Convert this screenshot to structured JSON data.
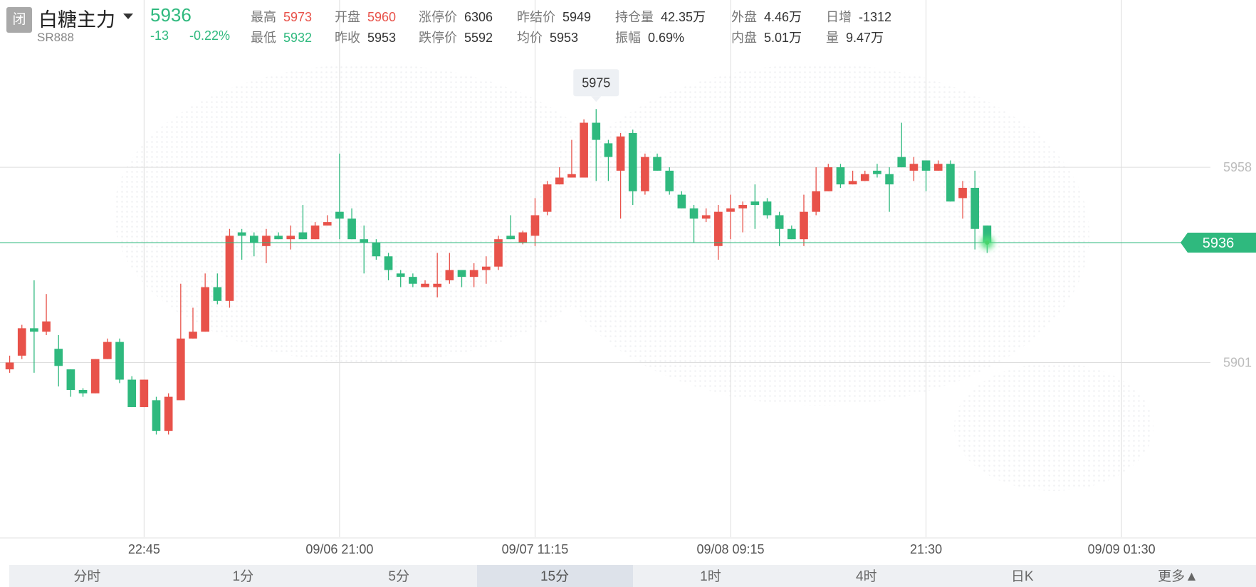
{
  "header": {
    "badge": "闭",
    "name": "白糖主力",
    "code": "SR888",
    "price": "5936",
    "change": "-13",
    "change_pct": "-0.22%",
    "price_color": "#2fb97e",
    "stats": [
      [
        {
          "label": "最高",
          "value": "5973",
          "color": "#e8524a"
        },
        {
          "label": "开盘",
          "value": "5960",
          "color": "#e8524a"
        },
        {
          "label": "涨停价",
          "value": "6306"
        },
        {
          "label": "昨结价",
          "value": "5949"
        },
        {
          "label": "持仓量",
          "value": "42.35万"
        },
        {
          "label": "外盘",
          "value": "4.46万"
        },
        {
          "label": "日增",
          "value": "-1312"
        }
      ],
      [
        {
          "label": "最低",
          "value": "5932",
          "color": "#2fb97e"
        },
        {
          "label": "昨收",
          "value": "5953"
        },
        {
          "label": "跌停价",
          "value": "5592"
        },
        {
          "label": "均价",
          "value": "5953"
        },
        {
          "label": "振幅",
          "value": "0.69%"
        },
        {
          "label": "内盘",
          "value": "5.01万"
        },
        {
          "label": "量",
          "value": "9.47万"
        }
      ]
    ]
  },
  "chart_data": {
    "type": "candlestick",
    "up_color": "#e8524a",
    "down_color": "#2fb97e",
    "grid": true,
    "ylim": [
      5850,
      5993
    ],
    "yticks": [
      5901,
      5958
    ],
    "categories": [
      null,
      null,
      null,
      null,
      null,
      null,
      null,
      null,
      null,
      null,
      null,
      "22:45",
      null,
      null,
      null,
      null,
      null,
      null,
      null,
      null,
      null,
      null,
      null,
      null,
      null,
      null,
      null,
      "09/06 21:00",
      null,
      null,
      null,
      null,
      null,
      null,
      null,
      null,
      null,
      null,
      null,
      null,
      null,
      null,
      null,
      "09/07 11:15",
      null,
      null,
      null,
      null,
      null,
      null,
      null,
      null,
      null,
      null,
      null,
      null,
      null,
      null,
      null,
      "09/08 09:15",
      null,
      null,
      null,
      null,
      null,
      null,
      null,
      null,
      null,
      null,
      null,
      null,
      null,
      null,
      null,
      "21:30",
      null,
      null,
      null,
      null,
      null,
      null,
      null,
      null,
      null,
      null,
      null,
      null,
      null,
      null,
      null,
      "09/09 01:30",
      null,
      null,
      null,
      null,
      null,
      null,
      null,
      null,
      null,
      null
    ],
    "open": [
      5899,
      5903,
      5911,
      5910,
      5905,
      5899,
      5893,
      5892,
      5902,
      5907,
      5896,
      5888,
      5890,
      5881,
      5890,
      5908,
      5910,
      5923,
      5919,
      5939,
      5938,
      5935,
      5938,
      5937,
      5939,
      5937,
      5941,
      5945,
      5943,
      5937,
      5936,
      5932,
      5927,
      5926,
      5923,
      5923,
      5925,
      5928,
      5926,
      5928,
      5929,
      5938,
      5936,
      5938,
      5945,
      5953,
      5955,
      5955,
      5971,
      5965,
      5957,
      5968,
      5951,
      5961,
      5957,
      5950,
      5946,
      5943,
      5935,
      5945,
      5946,
      5948,
      5948,
      5944,
      5940,
      5937,
      5945,
      5951,
      5958,
      5953,
      5954,
      5957,
      5956,
      5961,
      5957,
      5960,
      5957,
      5959,
      5949,
      5952,
      5941,
      null,
      null,
      null,
      null,
      null,
      null,
      null,
      null,
      null,
      null,
      null,
      null,
      null,
      null,
      null,
      null,
      null,
      null,
      null,
      null,
      null
    ],
    "high": [
      5903,
      5912,
      5925,
      5921,
      5909,
      5899,
      5893.5,
      5902,
      5908,
      5908,
      5897,
      5896,
      5891,
      5892,
      5924,
      5917,
      5927,
      5927,
      5940,
      5940,
      5939,
      5940,
      5939,
      5941,
      5947,
      5942,
      5944,
      5962,
      5946,
      5941,
      5937,
      5933,
      5928,
      5927,
      5925,
      5933,
      5933,
      5928,
      5930,
      5932,
      5938,
      5944,
      5939.5,
      5949,
      5954,
      5958,
      5966,
      5972,
      5975,
      5966,
      5968,
      5969,
      5962,
      5962,
      5958,
      5951,
      5947,
      5946,
      5947,
      5950,
      5948,
      5953,
      5949,
      5945,
      5941,
      5950,
      5958,
      5959,
      5959,
      5957,
      5957,
      5959,
      5958,
      5971,
      5961,
      5960,
      5960,
      5960,
      5954,
      5957,
      5941,
      null,
      null,
      null,
      null,
      null,
      null,
      null,
      null,
      null,
      null,
      null,
      null,
      null,
      null,
      null,
      null,
      null,
      null,
      null,
      null,
      null
    ],
    "low": [
      5898,
      5902,
      5898,
      5909,
      5894,
      5891,
      5891,
      5892,
      5902,
      5895,
      5888,
      5888,
      5880,
      5880,
      5890,
      5908,
      5910,
      5918,
      5917,
      5931,
      5932,
      5930,
      5937,
      5934,
      5937,
      5937,
      5941,
      5937,
      5937,
      5927,
      5931,
      5925,
      5923,
      5923,
      5923,
      5920,
      5924,
      5923,
      5923,
      5924,
      5928,
      5937,
      5935.5,
      5935,
      5944,
      5953,
      5955,
      5955,
      5954,
      5954,
      5943,
      5947,
      5950,
      5957,
      5950,
      5946,
      5936,
      5942,
      5931,
      5937,
      5939,
      5940,
      5943,
      5935,
      5937,
      5935,
      5944,
      5951,
      5952,
      5953,
      5954,
      5955,
      5945,
      5958,
      5954,
      5951,
      5957,
      5948,
      5943,
      5934,
      5933,
      null,
      null,
      null,
      null,
      null,
      null,
      null,
      null,
      null,
      null,
      null,
      null,
      null,
      null,
      null,
      null,
      null,
      null,
      null,
      null,
      null
    ],
    "close": [
      5901,
      5911,
      5910,
      5913,
      5900,
      5893,
      5892,
      5902,
      5907,
      5896,
      5888,
      5896,
      5881,
      5891,
      5908,
      5910,
      5923,
      5919,
      5938,
      5938,
      5936,
      5938,
      5937,
      5938,
      5937,
      5941,
      5942,
      5943,
      5937,
      5936,
      5932,
      5928,
      5926,
      5924,
      5924,
      5924,
      5928,
      5926,
      5928,
      5929,
      5937,
      5937,
      5939,
      5944,
      5953,
      5955,
      5956,
      5971,
      5966,
      5961,
      5967,
      5951,
      5961,
      5957,
      5951,
      5946,
      5943,
      5944,
      5945,
      5946,
      5947,
      5947,
      5944,
      5940,
      5937,
      5945,
      5951,
      5958,
      5953,
      5954,
      5956,
      5956,
      5953,
      5958,
      5959,
      5957,
      5959,
      5948,
      5952,
      5940,
      5936,
      null,
      null,
      null,
      null,
      null,
      null,
      null,
      null,
      null,
      null,
      null,
      null,
      null,
      null,
      null,
      null,
      null,
      null,
      null,
      null,
      null
    ]
  },
  "tabs": [
    {
      "label": "分时"
    },
    {
      "label": "1分"
    },
    {
      "label": "5分"
    },
    {
      "label": "15分",
      "active": true
    },
    {
      "label": "1时"
    },
    {
      "label": "4时"
    },
    {
      "label": "日K"
    },
    {
      "label": "更多▲"
    }
  ]
}
